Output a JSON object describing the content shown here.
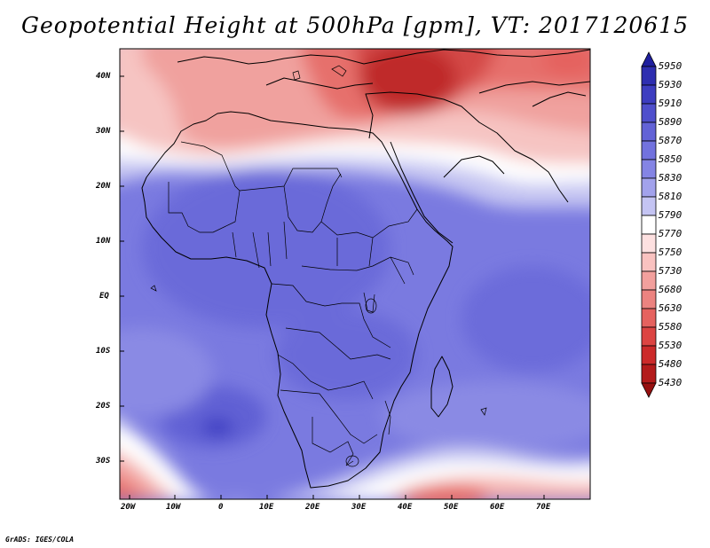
{
  "title": "Geopotential Height at 500hPa [gpm], VT: 2017120615",
  "credit": "GrADS: IGES/COLA",
  "map": {
    "variable": "Geopotential Height at 500hPa",
    "units": "gpm",
    "valid_time": "2017120615",
    "lon_range": [
      -22,
      80
    ],
    "lat_range": [
      -37,
      45
    ],
    "lat_ticks": [
      "40N",
      "30N",
      "20N",
      "10N",
      "EQ",
      "10S",
      "20S",
      "30S"
    ],
    "lon_ticks": [
      "20W",
      "10W",
      "0",
      "10E",
      "20E",
      "30E",
      "40E",
      "50E",
      "60E",
      "70E"
    ]
  },
  "colorbar": {
    "levels": [
      "5950",
      "5930",
      "5910",
      "5890",
      "5870",
      "5850",
      "5830",
      "5810",
      "5790",
      "5770",
      "5750",
      "5730",
      "5680",
      "5630",
      "5580",
      "5530",
      "5480",
      "5430"
    ],
    "colors": [
      "#1f1f9e",
      "#2e2eb0",
      "#3d3dc0",
      "#4f4fcc",
      "#6262d6",
      "#7272de",
      "#8484e4",
      "#a2a2ec",
      "#c4c4f3",
      "#ffffff",
      "#fde0e0",
      "#f9c2c0",
      "#f2a09d",
      "#ec8380",
      "#e5625f",
      "#dc4442",
      "#cc2a2a",
      "#b31b1b",
      "#961010"
    ]
  }
}
